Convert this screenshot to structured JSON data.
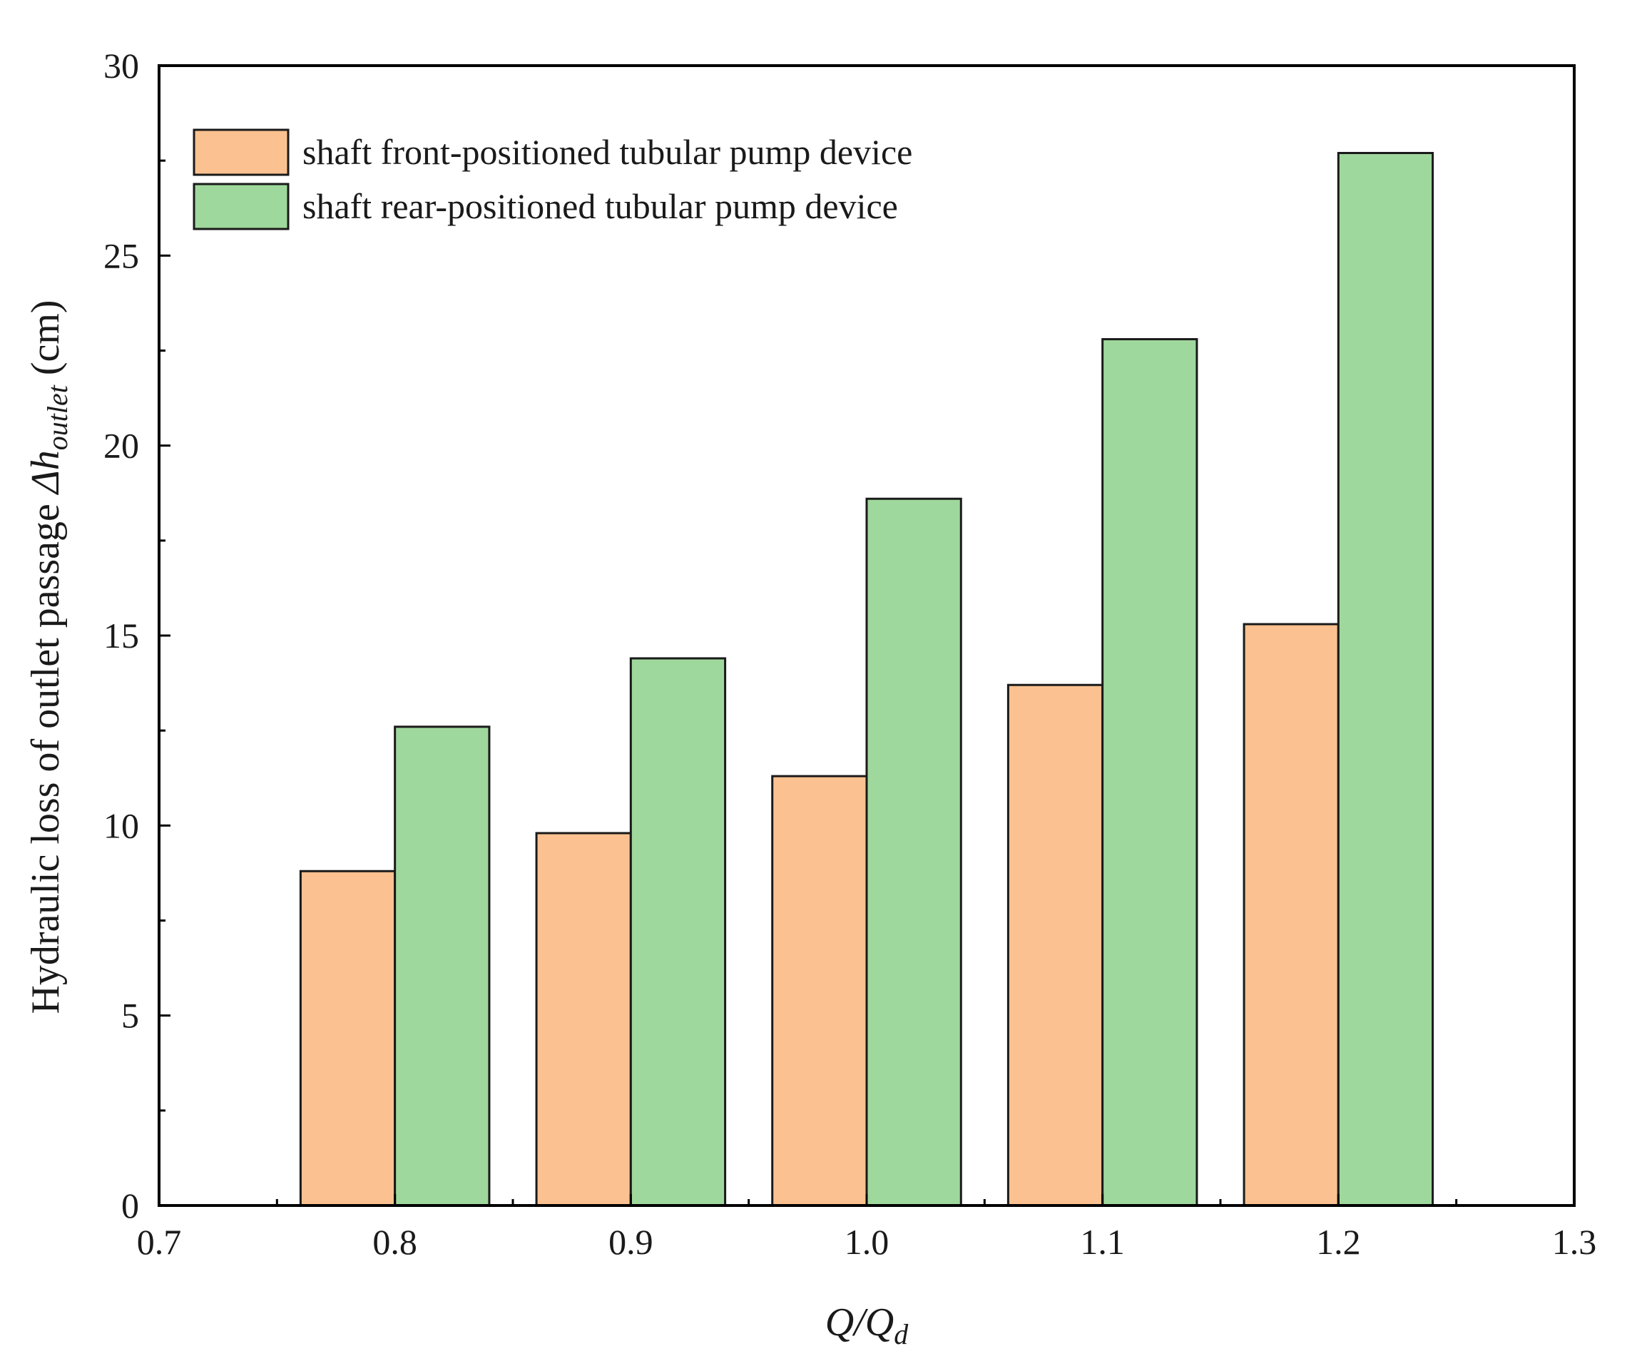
{
  "chart_data": {
    "type": "bar",
    "title": "",
    "xlabel": {
      "main": "Q/Q",
      "sub": "d"
    },
    "ylabel": {
      "prefix": "Hydraulic loss of outlet passage ",
      "symbol": "Δh",
      "sub": "outlet",
      "suffix": " (cm)"
    },
    "xlim": [
      0.7,
      1.3
    ],
    "ylim": [
      0,
      30
    ],
    "x_ticks": [
      "0.7",
      "0.8",
      "0.9",
      "1.0",
      "1.1",
      "1.2",
      "1.3"
    ],
    "y_ticks": [
      "0",
      "5",
      "10",
      "15",
      "20",
      "25",
      "30"
    ],
    "categories": [
      "0.8",
      "0.9",
      "1.0",
      "1.1",
      "1.2"
    ],
    "series": [
      {
        "name": "shaft front-positioned tubular pump device",
        "color": "#fcc190",
        "values": [
          8.8,
          9.8,
          11.3,
          13.7,
          15.3
        ]
      },
      {
        "name": "shaft rear-positioned tubular pump device",
        "color": "#9fd89c",
        "values": [
          12.6,
          14.4,
          18.6,
          22.8,
          27.7
        ]
      }
    ],
    "legend_position": "top-left",
    "grid": false
  }
}
